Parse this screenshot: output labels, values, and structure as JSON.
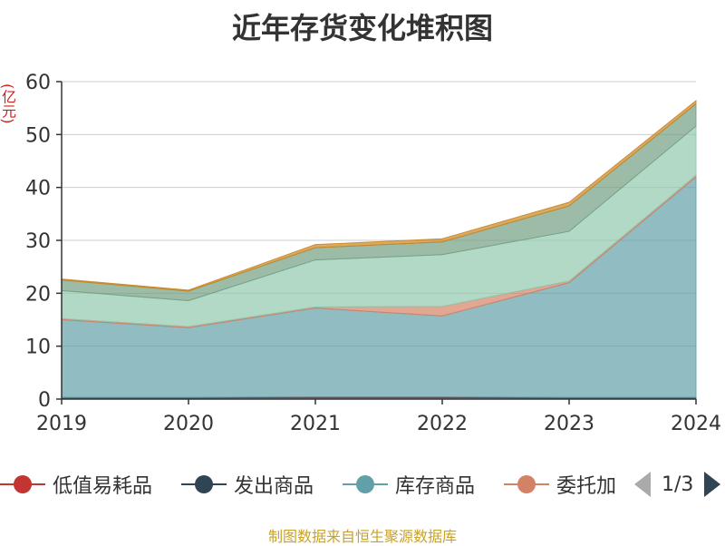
{
  "chart_data": {
    "type": "area",
    "stacked": true,
    "title": "近年存货变化堆积图",
    "ylabel": "(亿元)",
    "categories": [
      "2019",
      "2020",
      "2021",
      "2022",
      "2023",
      "2024"
    ],
    "ylim": [
      0,
      60
    ],
    "yticks": [
      "0",
      "10",
      "20",
      "30",
      "40",
      "50",
      "60"
    ],
    "grid": true,
    "series": [
      {
        "name": "低值易耗品",
        "color": "#c23531",
        "values": [
          0.2,
          0.2,
          0.3,
          0.3,
          0.2,
          0.2
        ]
      },
      {
        "name": "发出商品",
        "color": "#2f4554",
        "values": [
          0.1,
          0.1,
          0.1,
          0.1,
          0.1,
          0.1
        ]
      },
      {
        "name": "库存商品",
        "color": "#61a0a8",
        "values": [
          14.7,
          13.2,
          16.8,
          15.3,
          21.7,
          41.7
        ]
      },
      {
        "name": "委托加工物资",
        "color": "#d48265",
        "values": [
          0.2,
          0.2,
          0.2,
          1.8,
          0.3,
          0.3
        ]
      },
      {
        "name": "",
        "color": "#91c7ae",
        "values": [
          5.3,
          4.9,
          8.9,
          9.8,
          9.4,
          9.3
        ]
      },
      {
        "name": "",
        "color": "#749f83",
        "values": [
          2.0,
          1.8,
          2.3,
          2.4,
          4.8,
          4.2
        ]
      },
      {
        "name": "",
        "color": "#ca8622",
        "values": [
          0.2,
          0.2,
          0.6,
          0.6,
          0.7,
          0.6
        ]
      }
    ],
    "legend": {
      "placement": "bottom",
      "page": "1/3",
      "visible_labels": [
        "低值易耗品",
        "发出商品",
        "库存商品",
        "委托加"
      ]
    }
  },
  "source": "制图数据来自恒生聚源数据库"
}
